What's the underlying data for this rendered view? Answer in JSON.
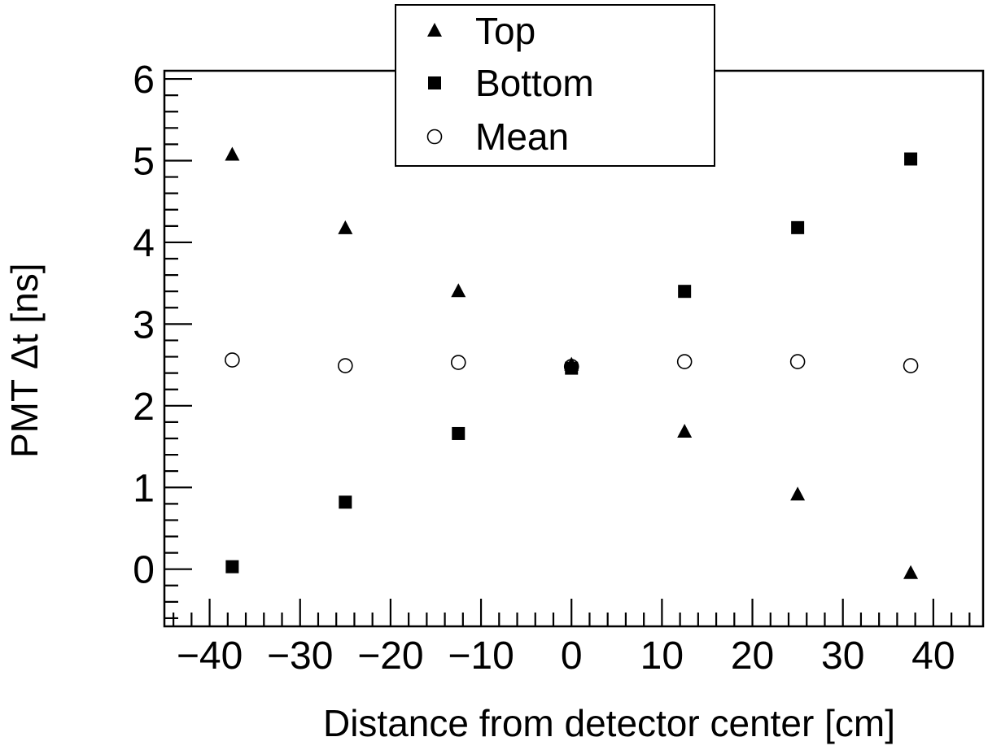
{
  "chart_data": {
    "type": "scatter",
    "xlabel": "Distance from detector center [cm]",
    "ylabel": "PMT Δt [ns]",
    "xlim": [
      -45,
      45.5
    ],
    "ylim": [
      -0.7,
      6.1
    ],
    "x_ticks": [
      -40,
      -30,
      -20,
      -10,
      0,
      10,
      20,
      30,
      40
    ],
    "x_tick_labels": [
      "−40",
      "−30",
      "−20",
      "−10",
      "0",
      "10",
      "20",
      "30",
      "40"
    ],
    "y_ticks": [
      0,
      1,
      2,
      3,
      4,
      5,
      6
    ],
    "y_tick_labels": [
      "0",
      "1",
      "2",
      "3",
      "4",
      "5",
      "6"
    ],
    "legend_position": "top-center",
    "series": [
      {
        "name": "Top",
        "marker": "triangle",
        "x": [
          -37.5,
          -25,
          -12.5,
          0,
          12.5,
          25,
          37.5
        ],
        "y": [
          5.07,
          4.17,
          3.4,
          2.5,
          1.68,
          0.91,
          -0.05
        ]
      },
      {
        "name": "Bottom",
        "marker": "square",
        "x": [
          -37.5,
          -25,
          -12.5,
          0,
          12.5,
          25,
          37.5
        ],
        "y": [
          0.03,
          0.82,
          1.66,
          2.46,
          3.4,
          4.18,
          5.02
        ]
      },
      {
        "name": "Mean",
        "marker": "open-circle",
        "x": [
          -37.5,
          -25,
          -12.5,
          0,
          12.5,
          25,
          37.5
        ],
        "y": [
          2.56,
          2.49,
          2.53,
          2.48,
          2.54,
          2.54,
          2.49
        ]
      }
    ]
  }
}
